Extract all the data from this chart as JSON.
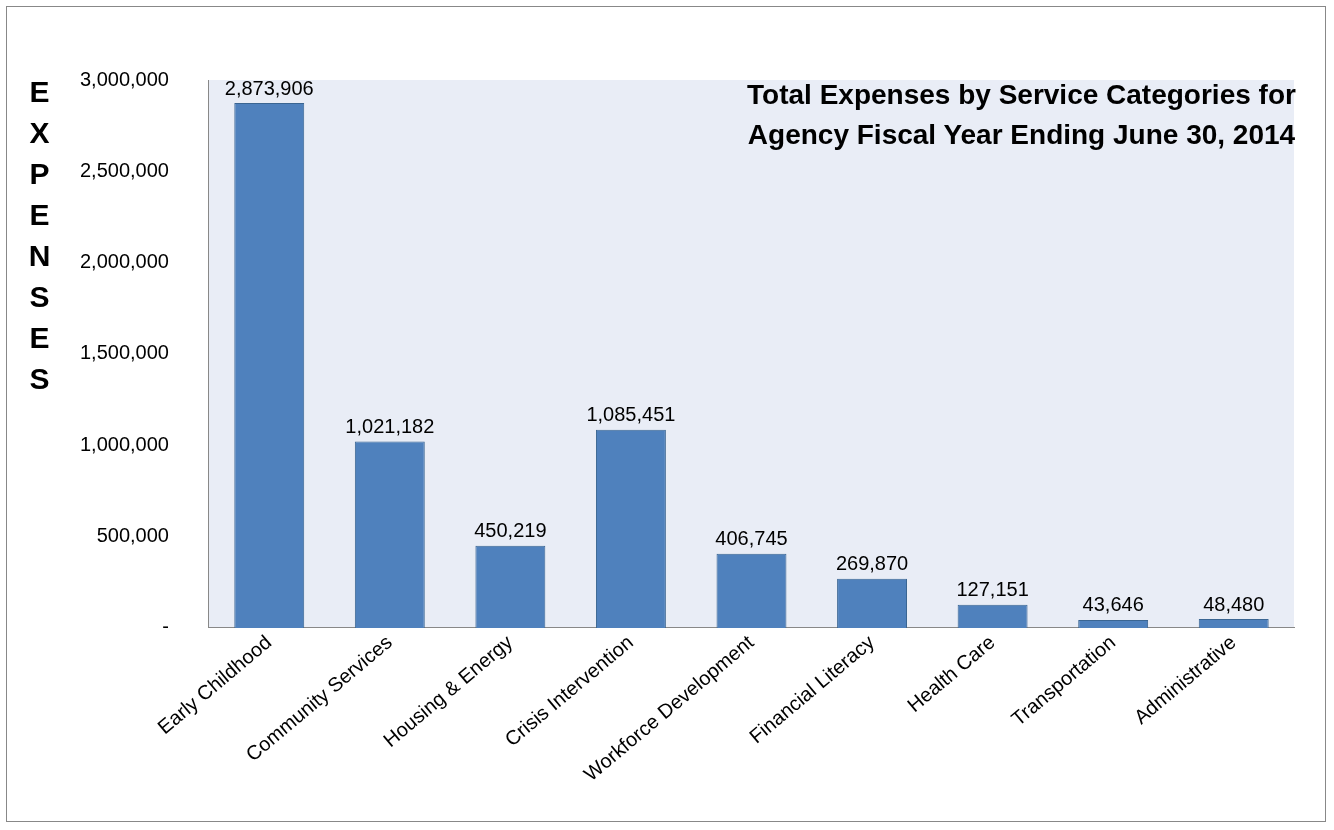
{
  "chart_data": {
    "type": "bar",
    "title": "Total Expenses by Service Categories for Agency Fiscal Year Ending June 30, 2014",
    "ylabel": "EXPENSES",
    "categories": [
      "Early Childhood",
      "Community Services",
      "Housing & Energy",
      "Crisis Intervention",
      "Workforce Development",
      "Financial Literacy",
      "Health Care",
      "Transportation",
      "Administrative"
    ],
    "values": [
      2873906,
      1021182,
      450219,
      1085451,
      406745,
      269870,
      127151,
      43646,
      48480
    ],
    "color": "#4f81bd",
    "ylim": [
      0,
      3000000
    ],
    "yticks": [
      {
        "value": 0,
        "label": "-"
      },
      {
        "value": 500000,
        "label": "500,000"
      },
      {
        "value": 1000000,
        "label": "1,000,000"
      },
      {
        "value": 1500000,
        "label": "1,500,000"
      },
      {
        "value": 2000000,
        "label": "2,000,000"
      },
      {
        "value": 2500000,
        "label": "2,500,000"
      },
      {
        "value": 3000000,
        "label": "3,000,000"
      }
    ],
    "value_labels": [
      "2,873,906",
      "1,021,182",
      "450,219",
      "1,085,451",
      "406,745",
      "269,870",
      "127,151",
      "43,646",
      "48,480"
    ],
    "grid": false
  }
}
